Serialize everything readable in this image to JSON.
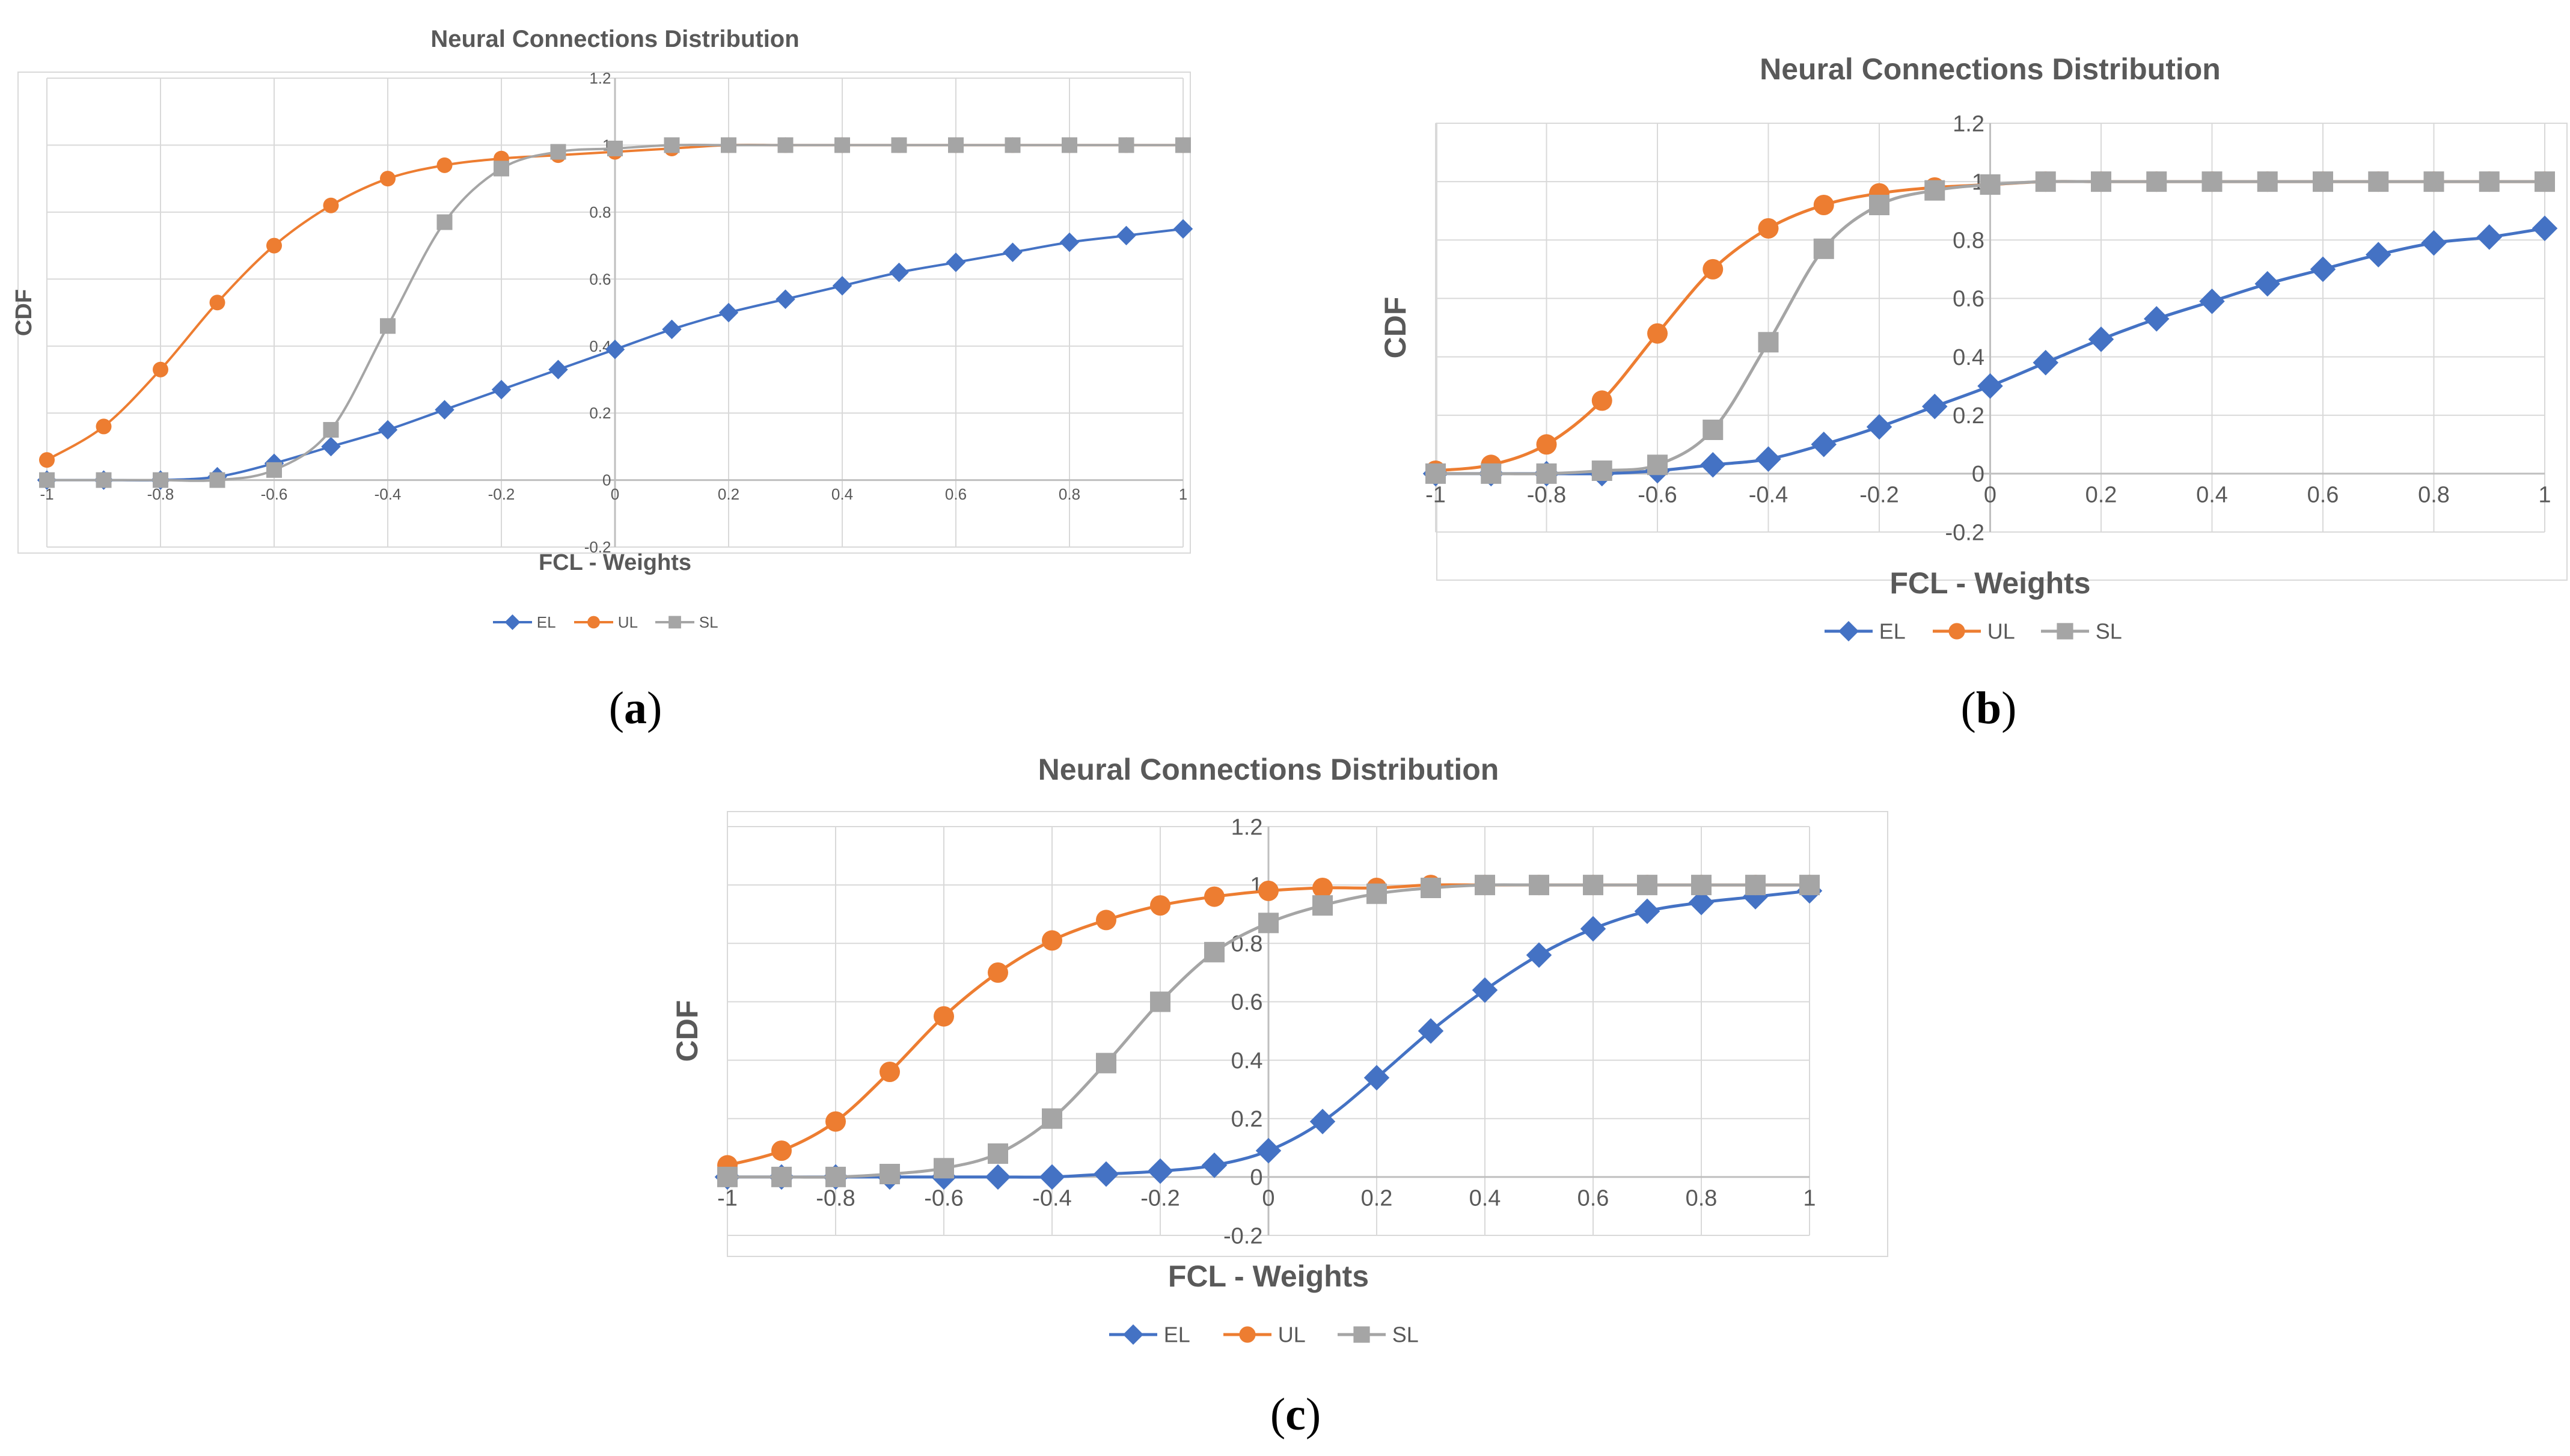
{
  "colors": {
    "EL": "#4472c4",
    "UL": "#ed7d31",
    "SL": "#a5a5a5",
    "grid": "#d9d9d9",
    "text": "#595959"
  },
  "chart_data": [
    {
      "id": "a",
      "caption": "a",
      "type": "line",
      "title": "Neural Connections Distribution",
      "xlabel": "FCL - Weights",
      "ylabel": "CDF",
      "xlim": [
        -1,
        1
      ],
      "ylim": [
        -0.2,
        1.2
      ],
      "xticks": [
        "-1",
        "-0.8",
        "-0.6",
        "-0.4",
        "-0.2",
        "0",
        "0.2",
        "0.4",
        "0.6",
        "0.8",
        "1"
      ],
      "yticks": [
        "-0.2",
        "0",
        "0.2",
        "0.4",
        "0.6",
        "0.8",
        "1",
        "1.2"
      ],
      "x": [
        -1,
        -0.9,
        -0.8,
        -0.7,
        -0.6,
        -0.5,
        -0.4,
        -0.3,
        -0.2,
        -0.1,
        0,
        0.1,
        0.2,
        0.3,
        0.4,
        0.5,
        0.6,
        0.7,
        0.8,
        0.9,
        1
      ],
      "series": [
        {
          "name": "EL",
          "marker": "diamond",
          "values": [
            0,
            0,
            0,
            0.01,
            0.05,
            0.1,
            0.15,
            0.21,
            0.27,
            0.33,
            0.39,
            0.45,
            0.5,
            0.54,
            0.58,
            0.62,
            0.65,
            0.68,
            0.71,
            0.73,
            0.75
          ]
        },
        {
          "name": "UL",
          "marker": "circle",
          "values": [
            0.06,
            0.16,
            0.33,
            0.53,
            0.7,
            0.82,
            0.9,
            0.94,
            0.96,
            0.97,
            0.98,
            0.99,
            1,
            1,
            1,
            1,
            1,
            1,
            1,
            1,
            1
          ]
        },
        {
          "name": "SL",
          "marker": "square",
          "values": [
            0,
            0,
            0,
            0,
            0.03,
            0.15,
            0.46,
            0.77,
            0.93,
            0.98,
            0.99,
            1,
            1,
            1,
            1,
            1,
            1,
            1,
            1,
            1,
            1
          ]
        }
      ],
      "legend": [
        "EL",
        "UL",
        "SL"
      ]
    },
    {
      "id": "b",
      "caption": "b",
      "type": "line",
      "title": "Neural Connections Distribution",
      "xlabel": "FCL - Weights",
      "ylabel": "CDF",
      "xlim": [
        -1,
        1
      ],
      "ylim": [
        -0.2,
        1.2
      ],
      "xticks": [
        "-1",
        "-0.8",
        "-0.6",
        "-0.4",
        "-0.2",
        "0",
        "0.2",
        "0.4",
        "0.6",
        "0.8",
        "1"
      ],
      "yticks": [
        "-0.2",
        "0",
        "0.2",
        "0.4",
        "0.6",
        "0.8",
        "1",
        "1.2"
      ],
      "x": [
        -1,
        -0.9,
        -0.8,
        -0.7,
        -0.6,
        -0.5,
        -0.4,
        -0.3,
        -0.2,
        -0.1,
        0,
        0.1,
        0.2,
        0.3,
        0.4,
        0.5,
        0.6,
        0.7,
        0.8,
        0.9,
        1
      ],
      "series": [
        {
          "name": "EL",
          "marker": "diamond",
          "values": [
            0,
            0,
            0,
            0,
            0.01,
            0.03,
            0.05,
            0.1,
            0.16,
            0.23,
            0.3,
            0.38,
            0.46,
            0.53,
            0.59,
            0.65,
            0.7,
            0.75,
            0.79,
            0.81,
            0.84
          ]
        },
        {
          "name": "UL",
          "marker": "circle",
          "values": [
            0.01,
            0.03,
            0.1,
            0.25,
            0.48,
            0.7,
            0.84,
            0.92,
            0.96,
            0.98,
            0.99,
            1,
            1,
            1,
            1,
            1,
            1,
            1,
            1,
            1,
            1
          ]
        },
        {
          "name": "SL",
          "marker": "square",
          "values": [
            0,
            0,
            0,
            0.01,
            0.03,
            0.15,
            0.45,
            0.77,
            0.92,
            0.97,
            0.99,
            1,
            1,
            1,
            1,
            1,
            1,
            1,
            1,
            1,
            1
          ]
        }
      ],
      "legend": [
        "EL",
        "UL",
        "SL"
      ]
    },
    {
      "id": "c",
      "caption": "c",
      "type": "line",
      "title": "Neural Connections Distribution",
      "xlabel": "FCL - Weights",
      "ylabel": "CDF",
      "xlim": [
        -1,
        1
      ],
      "ylim": [
        -0.2,
        1.2
      ],
      "xticks": [
        "-1",
        "-0.8",
        "-0.6",
        "-0.4",
        "-0.2",
        "0",
        "0.2",
        "0.4",
        "0.6",
        "0.8",
        "1"
      ],
      "yticks": [
        "-0.2",
        "0",
        "0.2",
        "0.4",
        "0.6",
        "0.8",
        "1",
        "1.2"
      ],
      "x": [
        -1,
        -0.9,
        -0.8,
        -0.7,
        -0.6,
        -0.5,
        -0.4,
        -0.3,
        -0.2,
        -0.1,
        0,
        0.1,
        0.2,
        0.3,
        0.4,
        0.5,
        0.6,
        0.7,
        0.8,
        0.9,
        1
      ],
      "series": [
        {
          "name": "EL",
          "marker": "diamond",
          "values": [
            0,
            0,
            0,
            0,
            0,
            0,
            0,
            0.01,
            0.02,
            0.04,
            0.09,
            0.19,
            0.34,
            0.5,
            0.64,
            0.76,
            0.85,
            0.91,
            0.94,
            0.96,
            0.98
          ]
        },
        {
          "name": "UL",
          "marker": "circle",
          "values": [
            0.04,
            0.09,
            0.19,
            0.36,
            0.55,
            0.7,
            0.81,
            0.88,
            0.93,
            0.96,
            0.98,
            0.99,
            0.99,
            1,
            1,
            1,
            1,
            1,
            1,
            1,
            1
          ]
        },
        {
          "name": "SL",
          "marker": "square",
          "values": [
            0,
            0,
            0,
            0.01,
            0.03,
            0.08,
            0.2,
            0.39,
            0.6,
            0.77,
            0.87,
            0.93,
            0.97,
            0.99,
            1,
            1,
            1,
            1,
            1,
            1,
            1
          ]
        }
      ],
      "legend": [
        "EL",
        "UL",
        "SL"
      ]
    }
  ]
}
